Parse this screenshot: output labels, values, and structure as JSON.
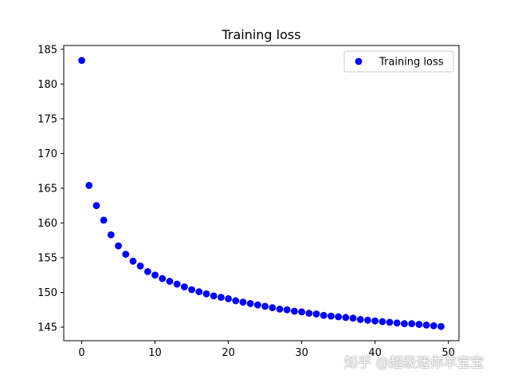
{
  "chart_data": {
    "type": "scatter",
    "title": "Training loss",
    "xlabel": "",
    "ylabel": "",
    "xlim": [
      -2.45,
      51.45
    ],
    "ylim": [
      143.05,
      185.55
    ],
    "x_ticks": [
      0,
      10,
      20,
      30,
      40,
      50
    ],
    "y_ticks": [
      145,
      150,
      155,
      160,
      165,
      170,
      175,
      180,
      185
    ],
    "grid": false,
    "legend_position": "top-right",
    "series": [
      {
        "name": "Training loss",
        "color": "#0000ff",
        "marker": "circle",
        "x": [
          0,
          1,
          2,
          3,
          4,
          5,
          6,
          7,
          8,
          9,
          10,
          11,
          12,
          13,
          14,
          15,
          16,
          17,
          18,
          19,
          20,
          21,
          22,
          23,
          24,
          25,
          26,
          27,
          28,
          29,
          30,
          31,
          32,
          33,
          34,
          35,
          36,
          37,
          38,
          39,
          40,
          41,
          42,
          43,
          44,
          45,
          46,
          47,
          48,
          49
        ],
        "values": [
          183.4,
          165.4,
          162.5,
          160.4,
          158.3,
          156.7,
          155.5,
          154.5,
          153.8,
          153.0,
          152.5,
          152.0,
          151.6,
          151.2,
          150.8,
          150.4,
          150.1,
          149.8,
          149.5,
          149.3,
          149.1,
          148.8,
          148.6,
          148.4,
          148.2,
          148.0,
          147.8,
          147.6,
          147.5,
          147.3,
          147.2,
          147.0,
          146.9,
          146.7,
          146.6,
          146.5,
          146.4,
          146.3,
          146.1,
          146.0,
          145.9,
          145.8,
          145.7,
          145.6,
          145.5,
          145.5,
          145.4,
          145.3,
          145.2,
          145.1
        ]
      }
    ]
  },
  "watermark": {
    "text": "知乎 @超级迷你羊宝宝"
  }
}
